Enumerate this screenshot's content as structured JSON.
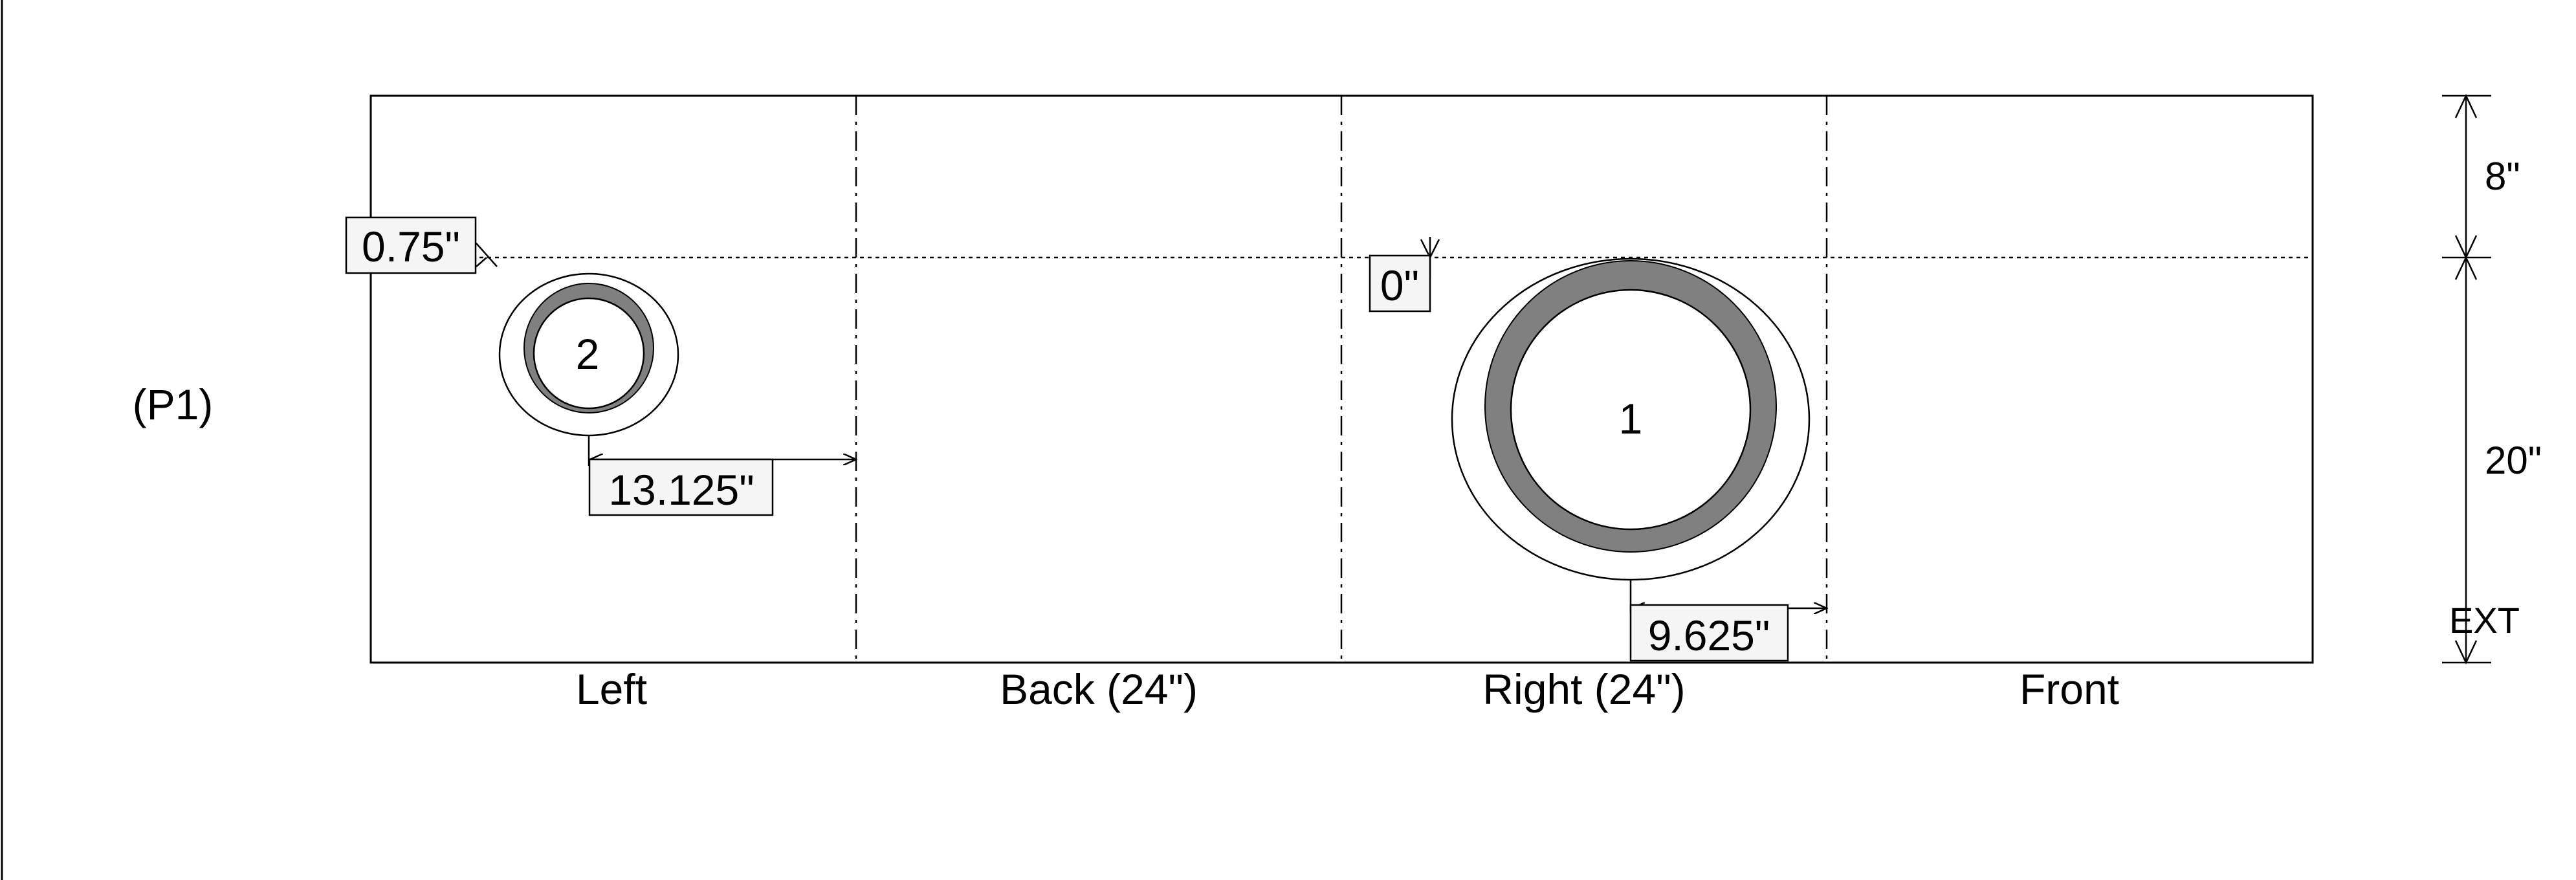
{
  "panel_label": "(P1)",
  "faces": [
    {
      "id": "left",
      "label": "Left"
    },
    {
      "id": "back",
      "label": "Back (24\")"
    },
    {
      "id": "right",
      "label": "Right (24\")"
    },
    {
      "id": "front",
      "label": "Front"
    }
  ],
  "holes": [
    {
      "id": "hole-1",
      "number": "1"
    },
    {
      "id": "hole-2",
      "number": "2"
    }
  ],
  "dimensions": {
    "top_offset_left": "0.75\"",
    "top_offset_right": "0\"",
    "hole2_horizontal": "13.125\"",
    "hole1_horizontal": "9.625\""
  },
  "vertical_dims": {
    "upper": "8\"",
    "lower": "20\"",
    "bottom_tag": "EXT"
  },
  "colors": {
    "line": "#000000",
    "ring": "#808080",
    "tag_bg": "#f5f5f5",
    "background": "#ffffff"
  }
}
